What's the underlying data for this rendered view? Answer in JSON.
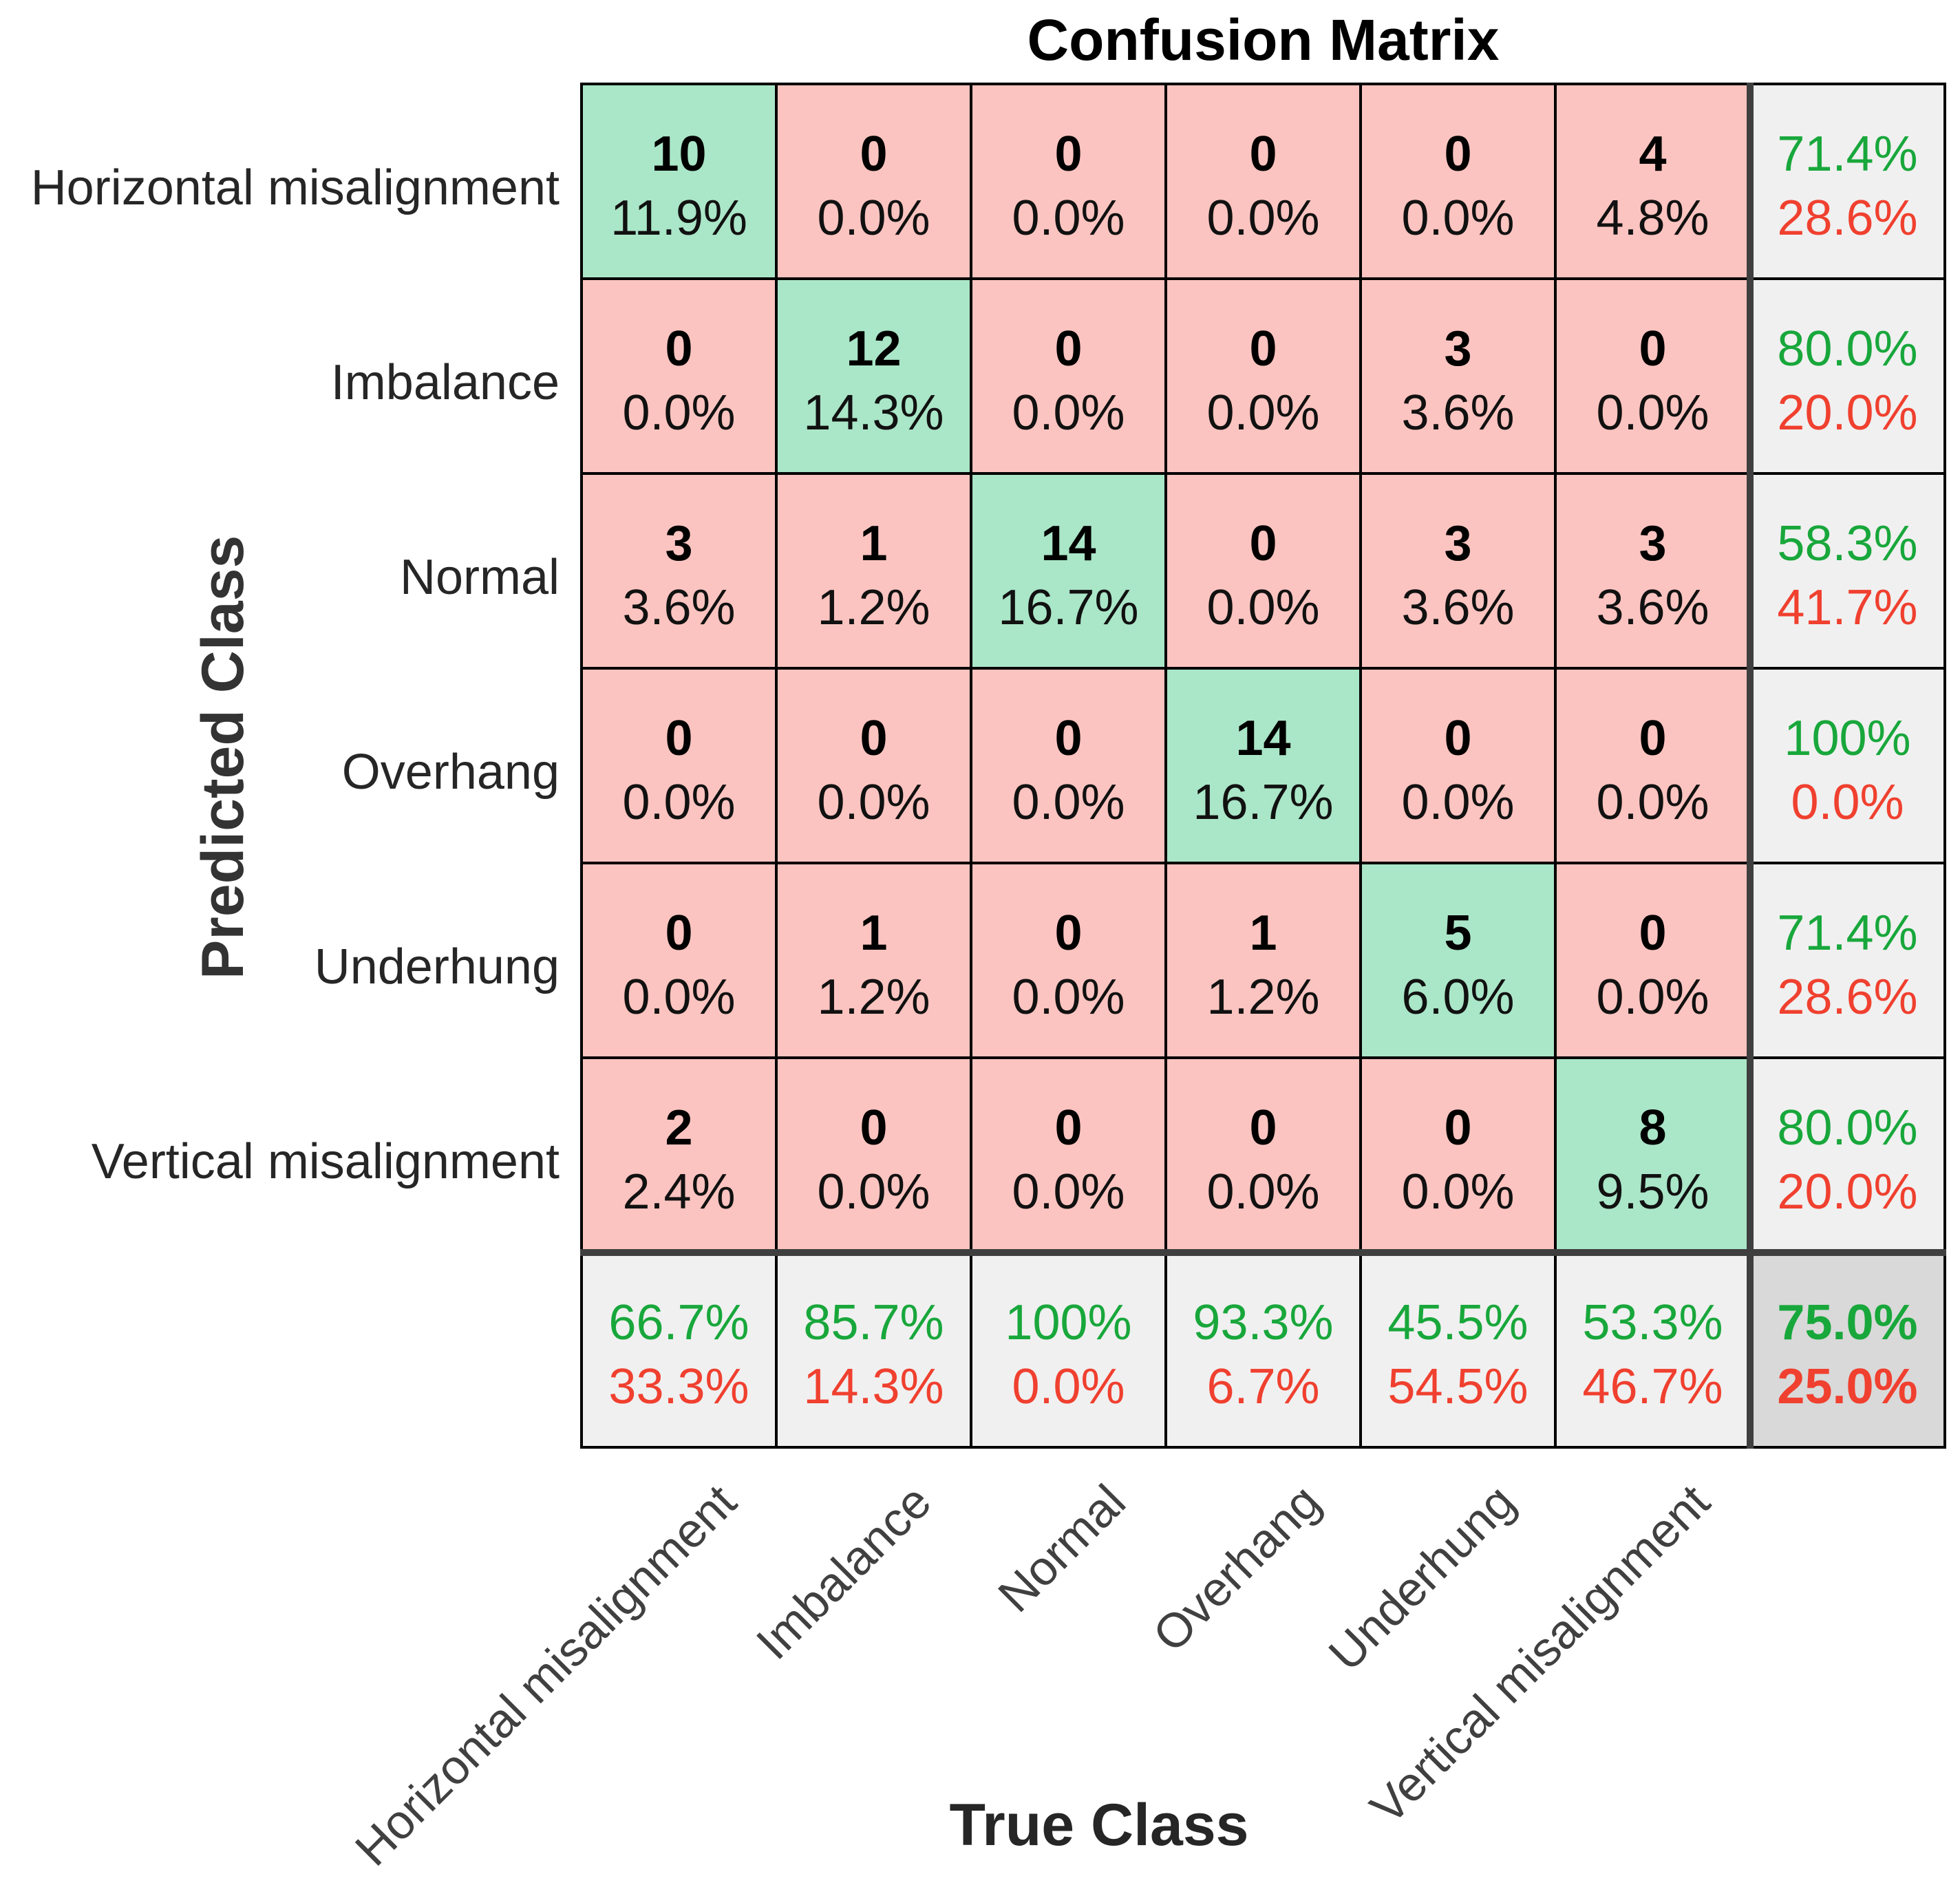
{
  "chart_data": {
    "type": "heatmap",
    "title": "Confusion Matrix",
    "xlabel": "True Class",
    "ylabel": "Predicted Class",
    "classes": [
      "Horizontal misalignment",
      "Imbalance",
      "Normal",
      "Overhang",
      "Underhung",
      "Vertical misalignment"
    ],
    "counts": [
      [
        10,
        0,
        0,
        0,
        0,
        4
      ],
      [
        0,
        12,
        0,
        0,
        3,
        0
      ],
      [
        3,
        1,
        14,
        0,
        3,
        3
      ],
      [
        0,
        0,
        0,
        14,
        0,
        0
      ],
      [
        0,
        1,
        0,
        1,
        5,
        0
      ],
      [
        2,
        0,
        0,
        0,
        0,
        8
      ]
    ],
    "percentages": [
      [
        "11.9%",
        "0.0%",
        "0.0%",
        "0.0%",
        "0.0%",
        "4.8%"
      ],
      [
        "0.0%",
        "14.3%",
        "0.0%",
        "0.0%",
        "3.6%",
        "0.0%"
      ],
      [
        "3.6%",
        "1.2%",
        "16.7%",
        "0.0%",
        "3.6%",
        "3.6%"
      ],
      [
        "0.0%",
        "0.0%",
        "0.0%",
        "16.7%",
        "0.0%",
        "0.0%"
      ],
      [
        "0.0%",
        "1.2%",
        "0.0%",
        "1.2%",
        "6.0%",
        "0.0%"
      ],
      [
        "2.4%",
        "0.0%",
        "0.0%",
        "0.0%",
        "0.0%",
        "9.5%"
      ]
    ],
    "row_summary": [
      {
        "correct": "71.4%",
        "incorrect": "28.6%"
      },
      {
        "correct": "80.0%",
        "incorrect": "20.0%"
      },
      {
        "correct": "58.3%",
        "incorrect": "41.7%"
      },
      {
        "correct": "100%",
        "incorrect": "0.0%"
      },
      {
        "correct": "71.4%",
        "incorrect": "28.6%"
      },
      {
        "correct": "80.0%",
        "incorrect": "20.0%"
      }
    ],
    "column_summary": [
      {
        "correct": "66.7%",
        "incorrect": "33.3%"
      },
      {
        "correct": "85.7%",
        "incorrect": "14.3%"
      },
      {
        "correct": "100%",
        "incorrect": "0.0%"
      },
      {
        "correct": "93.3%",
        "incorrect": "6.7%"
      },
      {
        "correct": "45.5%",
        "incorrect": "54.5%"
      },
      {
        "correct": "53.3%",
        "incorrect": "46.7%"
      }
    ],
    "overall": {
      "correct": "75.0%",
      "incorrect": "25.0%"
    },
    "colors": {
      "correct_cell": "#aae6c8",
      "incorrect_cell": "#fcc4c0",
      "summary_cell": "#f0f0f0",
      "overall_cell": "#d9d9d9",
      "correct_text": "#18a73b",
      "incorrect_text": "#f0402f"
    }
  }
}
